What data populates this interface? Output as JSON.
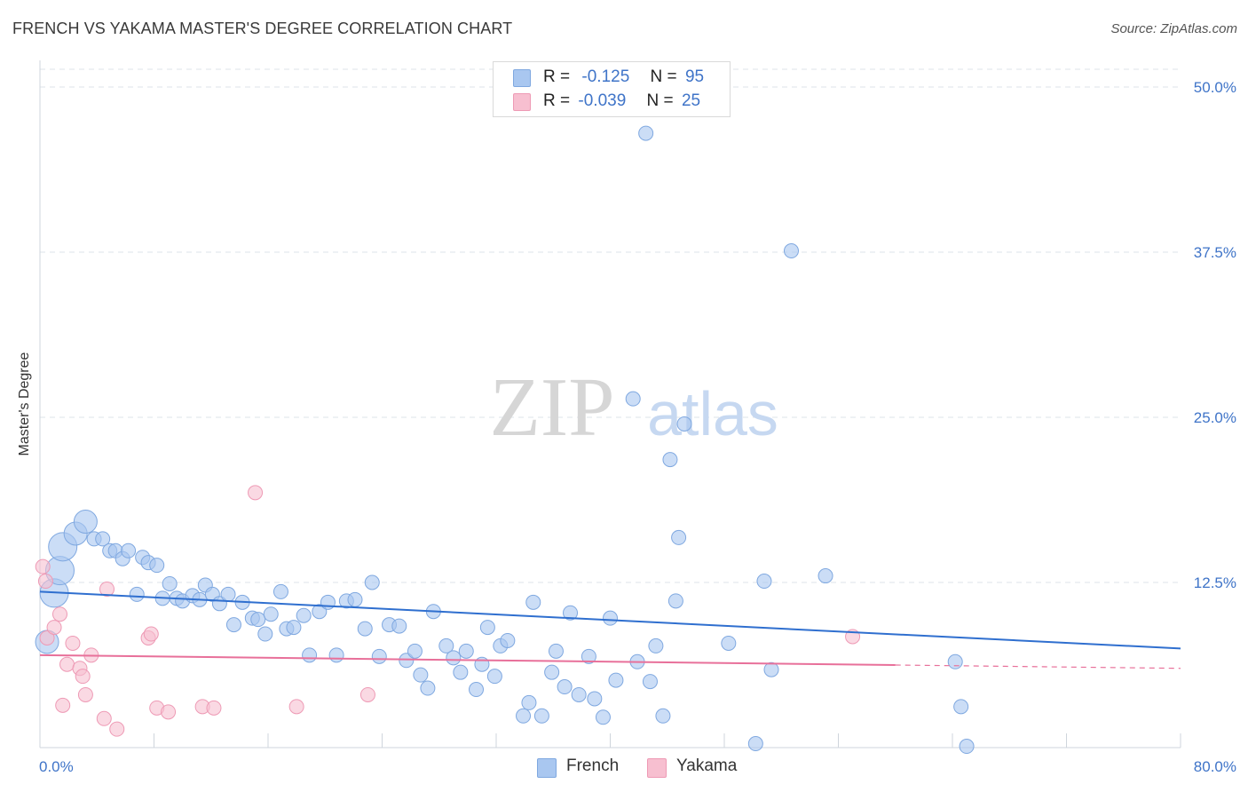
{
  "header": {
    "title": "FRENCH VS YAKAMA MASTER'S DEGREE CORRELATION CHART",
    "source": "Source: ZipAtlas.com"
  },
  "watermark": {
    "zip": "ZIP",
    "atlas": "atlas"
  },
  "legend_top": {
    "rows": [
      {
        "r_label": "R =",
        "r_value": "-0.125",
        "n_label": "N =",
        "n_value": "95"
      },
      {
        "r_label": "R =",
        "r_value": "-0.039",
        "n_label": "N =",
        "n_value": "25"
      }
    ]
  },
  "legend_bottom": {
    "items": [
      "French",
      "Yakama"
    ]
  },
  "colors": {
    "french_fill": "#a9c7f0",
    "french_stroke": "#7fa8e0",
    "french_line": "#2f6fcf",
    "yakama_fill": "#f7bfd0",
    "yakama_stroke": "#ee9ab5",
    "yakama_line": "#e8709a",
    "axis_text": "#3f74c8",
    "grid": "#dde3ea"
  },
  "chart_data": {
    "type": "scatter",
    "title": "FRENCH VS YAKAMA MASTER'S DEGREE CORRELATION CHART",
    "xlabel": "",
    "ylabel": "Master's Degree",
    "xlim": [
      0,
      80
    ],
    "ylim": [
      0,
      50
    ],
    "x_tick_labels": [
      "0.0%",
      "80.0%"
    ],
    "y_ticks": [
      12.5,
      25.0,
      37.5,
      50.0
    ],
    "y_tick_labels": [
      "12.5%",
      "25.0%",
      "37.5%",
      "50.0%"
    ],
    "grid": true,
    "legend_position": "top-center",
    "series": [
      {
        "name": "French",
        "r": -0.125,
        "n": 95,
        "trend": {
          "x0": 0,
          "y0": 11.8,
          "x1": 80,
          "y1": 7.5
        },
        "points": [
          [
            0.5,
            8.0,
            2
          ],
          [
            1.0,
            11.7,
            3
          ],
          [
            1.4,
            13.4,
            3
          ],
          [
            1.6,
            15.2,
            3
          ],
          [
            2.5,
            16.2,
            2
          ],
          [
            3.2,
            17.1,
            2
          ],
          [
            3.8,
            15.8,
            1
          ],
          [
            4.4,
            15.8,
            1
          ],
          [
            4.9,
            14.9,
            1
          ],
          [
            5.3,
            14.9,
            1
          ],
          [
            5.8,
            14.3,
            1
          ],
          [
            6.2,
            14.9,
            1
          ],
          [
            6.8,
            11.6,
            1
          ],
          [
            7.2,
            14.4,
            1
          ],
          [
            7.6,
            14.0,
            1
          ],
          [
            8.2,
            13.8,
            1
          ],
          [
            8.6,
            11.3,
            1
          ],
          [
            9.1,
            12.4,
            1
          ],
          [
            9.6,
            11.3,
            1
          ],
          [
            10.0,
            11.1,
            1
          ],
          [
            10.7,
            11.5,
            1
          ],
          [
            11.2,
            11.2,
            1
          ],
          [
            11.6,
            12.3,
            1
          ],
          [
            12.1,
            11.6,
            1
          ],
          [
            12.6,
            10.9,
            1
          ],
          [
            13.2,
            11.6,
            1
          ],
          [
            13.6,
            9.3,
            1
          ],
          [
            14.2,
            11.0,
            1
          ],
          [
            14.9,
            9.8,
            1
          ],
          [
            15.3,
            9.7,
            1
          ],
          [
            15.8,
            8.6,
            1
          ],
          [
            16.2,
            10.1,
            1
          ],
          [
            16.9,
            11.8,
            1
          ],
          [
            17.3,
            9.0,
            1
          ],
          [
            17.8,
            9.1,
            1
          ],
          [
            18.5,
            10.0,
            1
          ],
          [
            18.9,
            7.0,
            1
          ],
          [
            19.6,
            10.3,
            1
          ],
          [
            20.2,
            11.0,
            1
          ],
          [
            20.8,
            7.0,
            1
          ],
          [
            21.5,
            11.1,
            1
          ],
          [
            22.1,
            11.2,
            1
          ],
          [
            22.8,
            9.0,
            1
          ],
          [
            23.3,
            12.5,
            1
          ],
          [
            23.8,
            6.9,
            1
          ],
          [
            24.5,
            9.3,
            1
          ],
          [
            25.2,
            9.2,
            1
          ],
          [
            25.7,
            6.6,
            1
          ],
          [
            26.3,
            7.3,
            1
          ],
          [
            26.7,
            5.5,
            1
          ],
          [
            27.2,
            4.5,
            1
          ],
          [
            27.6,
            10.3,
            1
          ],
          [
            28.5,
            7.7,
            1
          ],
          [
            29.0,
            6.8,
            1
          ],
          [
            29.5,
            5.7,
            1
          ],
          [
            29.9,
            7.3,
            1
          ],
          [
            30.6,
            4.4,
            1
          ],
          [
            31.0,
            6.3,
            1
          ],
          [
            31.4,
            9.1,
            1
          ],
          [
            31.9,
            5.4,
            1
          ],
          [
            32.3,
            7.7,
            1
          ],
          [
            32.8,
            8.1,
            1
          ],
          [
            33.9,
            2.4,
            1
          ],
          [
            34.3,
            3.4,
            1
          ],
          [
            34.6,
            11.0,
            1
          ],
          [
            35.2,
            2.4,
            1
          ],
          [
            35.9,
            5.7,
            1
          ],
          [
            36.2,
            7.3,
            1
          ],
          [
            36.8,
            4.6,
            1
          ],
          [
            37.2,
            10.2,
            1
          ],
          [
            37.8,
            4.0,
            1
          ],
          [
            38.5,
            6.9,
            1
          ],
          [
            38.9,
            3.7,
            1
          ],
          [
            39.5,
            2.3,
            1
          ],
          [
            40.0,
            9.8,
            1
          ],
          [
            40.4,
            5.1,
            1
          ],
          [
            41.6,
            26.4,
            1
          ],
          [
            41.9,
            6.5,
            1
          ],
          [
            42.8,
            5.0,
            1
          ],
          [
            42.5,
            46.5,
            1
          ],
          [
            43.2,
            7.7,
            1
          ],
          [
            43.7,
            2.4,
            1
          ],
          [
            44.2,
            21.8,
            1
          ],
          [
            44.6,
            11.1,
            1
          ],
          [
            44.8,
            15.9,
            1
          ],
          [
            45.2,
            24.5,
            1
          ],
          [
            48.3,
            7.9,
            1
          ],
          [
            50.2,
            0.3,
            1
          ],
          [
            50.8,
            12.6,
            1
          ],
          [
            51.3,
            5.9,
            1
          ],
          [
            52.7,
            37.6,
            1
          ],
          [
            55.1,
            13.0,
            1
          ],
          [
            64.2,
            6.5,
            1
          ],
          [
            64.6,
            3.1,
            1
          ],
          [
            65.0,
            0.1,
            1
          ]
        ]
      },
      {
        "name": "Yakama",
        "r": -0.039,
        "n": 25,
        "trend": {
          "x0": 0,
          "y0": 7.0,
          "x1": 80,
          "y1": 6.0
        },
        "points": [
          [
            0.2,
            13.7,
            1
          ],
          [
            0.4,
            12.6,
            1
          ],
          [
            0.5,
            8.3,
            1
          ],
          [
            1.0,
            9.1,
            1
          ],
          [
            1.4,
            10.1,
            1
          ],
          [
            1.6,
            3.2,
            1
          ],
          [
            1.9,
            6.3,
            1
          ],
          [
            2.3,
            7.9,
            1
          ],
          [
            2.8,
            6.0,
            1
          ],
          [
            3.0,
            5.4,
            1
          ],
          [
            3.2,
            4.0,
            1
          ],
          [
            3.6,
            7.0,
            1
          ],
          [
            4.5,
            2.2,
            1
          ],
          [
            4.7,
            12.0,
            1
          ],
          [
            5.4,
            1.4,
            1
          ],
          [
            7.6,
            8.3,
            1
          ],
          [
            7.8,
            8.6,
            1
          ],
          [
            8.2,
            3.0,
            1
          ],
          [
            9.0,
            2.7,
            1
          ],
          [
            11.4,
            3.1,
            1
          ],
          [
            12.2,
            3.0,
            1
          ],
          [
            15.1,
            19.3,
            1
          ],
          [
            18.0,
            3.1,
            1
          ],
          [
            23.0,
            4.0,
            1
          ],
          [
            57.0,
            8.4,
            1
          ]
        ]
      }
    ]
  }
}
